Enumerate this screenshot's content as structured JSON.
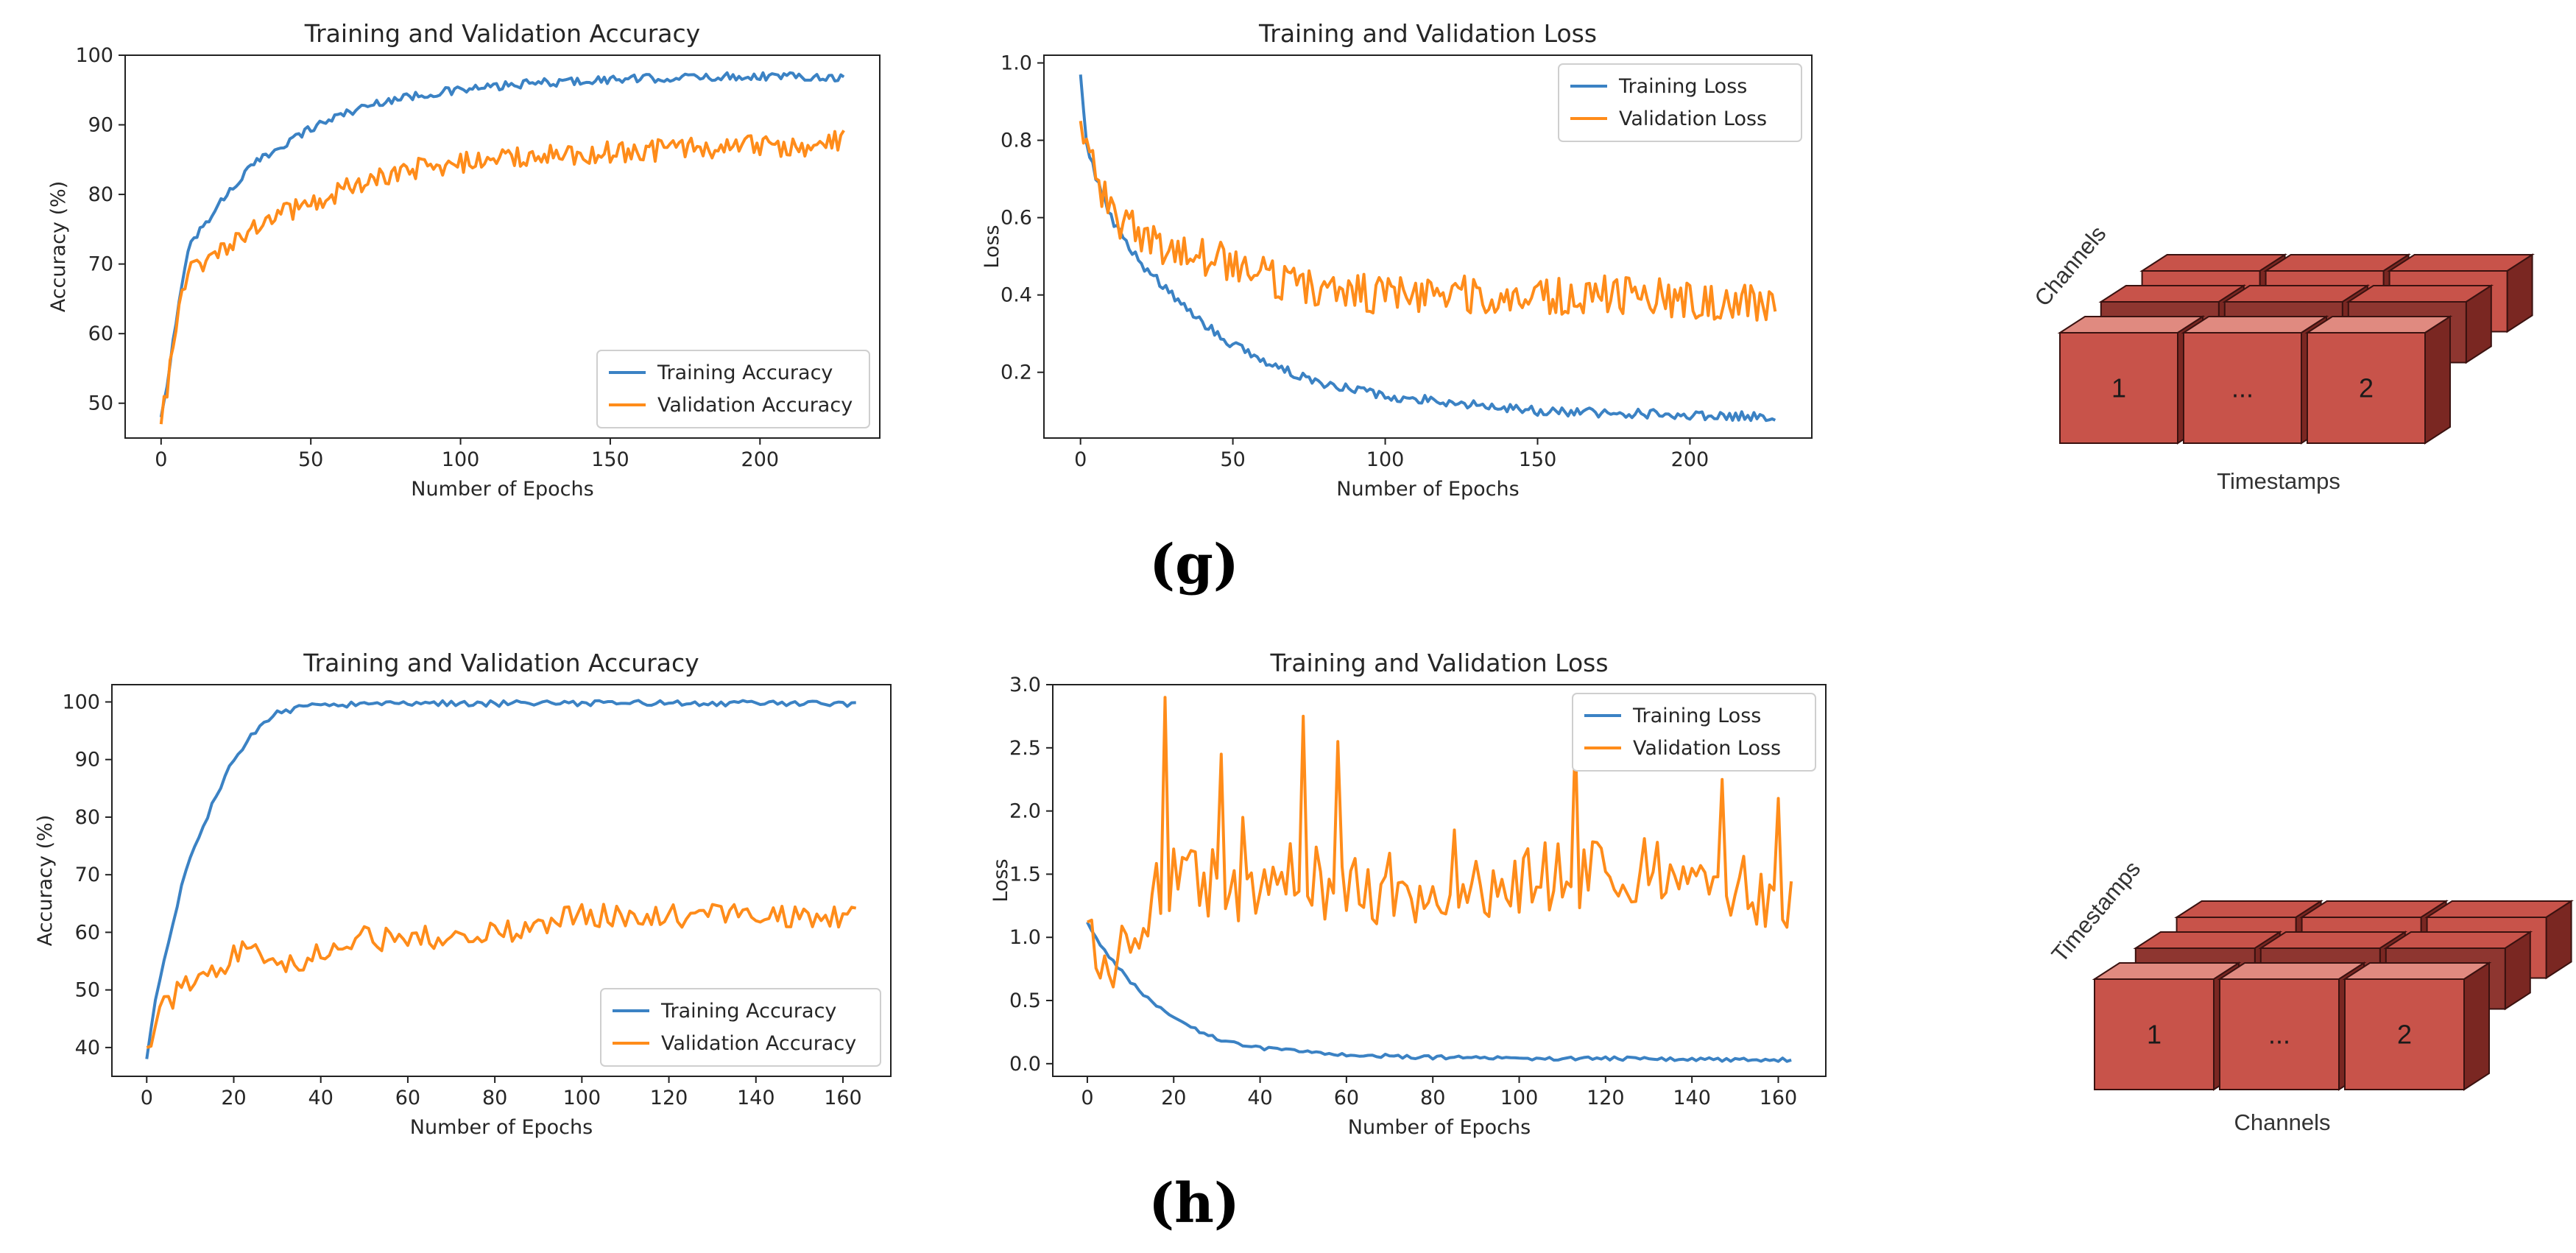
{
  "colors": {
    "training": "#3b82c4",
    "validation": "#ff8c1a",
    "cube_front": "#c8534a",
    "cube_top": "#e08a80",
    "cube_side": "#7a2722",
    "cube_back": "#8e3630"
  },
  "panel_labels": [
    "(g)",
    "(h)"
  ],
  "cubes": [
    {
      "depth_axis_label": "Channels",
      "width_axis_label": "Timestamps",
      "cells": [
        "1",
        "...",
        "2"
      ]
    },
    {
      "depth_axis_label": "Timestamps",
      "width_axis_label": "Channels",
      "cells": [
        "1",
        "...",
        "2"
      ]
    }
  ],
  "chart_data": [
    {
      "id": "g-acc",
      "type": "line",
      "title": "Training and Validation Accuracy",
      "xlabel": "Number of Epochs",
      "ylabel": "Accuracy (%)",
      "xlim": [
        -12,
        240
      ],
      "ylim": [
        45,
        100
      ],
      "xticks": [
        0,
        50,
        100,
        150,
        200
      ],
      "yticks": [
        50,
        60,
        70,
        80,
        90,
        100
      ],
      "legend": "lower-right",
      "series": [
        {
          "name": "Training Accuracy",
          "color_key": "training",
          "x": [
            0,
            2,
            5,
            8,
            10,
            15,
            20,
            30,
            40,
            50,
            60,
            75,
            90,
            100,
            125,
            150,
            175,
            200,
            215,
            228
          ],
          "y": [
            48,
            52,
            62,
            70,
            73,
            76,
            79,
            84,
            87,
            89.5,
            91.5,
            93.5,
            94.5,
            95,
            96,
            96.5,
            96.8,
            97,
            97,
            96.8
          ],
          "noise": 0.6
        },
        {
          "name": "Validation Accuracy",
          "color_key": "validation",
          "x": [
            0,
            2,
            5,
            8,
            10,
            15,
            20,
            30,
            40,
            50,
            60,
            75,
            90,
            100,
            125,
            150,
            175,
            200,
            215,
            228
          ],
          "y": [
            47,
            52,
            62,
            67,
            69,
            70,
            72,
            75,
            77,
            79,
            80.5,
            82.5,
            84,
            84.5,
            85.5,
            86,
            86.5,
            87,
            87,
            88
          ],
          "noise": 1.6
        }
      ]
    },
    {
      "id": "g-loss",
      "type": "line",
      "title": "Training and Validation Loss",
      "xlabel": "Number of Epochs",
      "ylabel": "Loss",
      "xlim": [
        -12,
        240
      ],
      "ylim": [
        0.03,
        1.02
      ],
      "xticks": [
        0,
        50,
        100,
        150,
        200
      ],
      "yticks": [
        0.2,
        0.4,
        0.6,
        0.8,
        1.0
      ],
      "legend": "upper-right",
      "series": [
        {
          "name": "Training Loss",
          "color_key": "training",
          "x": [
            0,
            2,
            5,
            10,
            15,
            20,
            30,
            40,
            50,
            60,
            75,
            100,
            125,
            150,
            175,
            200,
            228
          ],
          "y": [
            0.97,
            0.8,
            0.7,
            0.6,
            0.54,
            0.48,
            0.4,
            0.33,
            0.27,
            0.23,
            0.18,
            0.14,
            0.12,
            0.1,
            0.095,
            0.09,
            0.085
          ],
          "noise": 0.012
        },
        {
          "name": "Validation Loss",
          "color_key": "validation",
          "x": [
            0,
            2,
            5,
            10,
            15,
            20,
            30,
            40,
            50,
            60,
            75,
            100,
            125,
            150,
            175,
            200,
            228
          ],
          "y": [
            0.85,
            0.78,
            0.7,
            0.62,
            0.58,
            0.55,
            0.52,
            0.5,
            0.48,
            0.45,
            0.42,
            0.4,
            0.4,
            0.4,
            0.4,
            0.39,
            0.37
          ],
          "noise": 0.05
        }
      ]
    },
    {
      "id": "h-acc",
      "type": "line",
      "title": "Training and Validation Accuracy",
      "xlabel": "Number of Epochs",
      "ylabel": "Accuracy (%)",
      "xlim": [
        -8,
        171
      ],
      "ylim": [
        35,
        103
      ],
      "xticks": [
        0,
        20,
        40,
        60,
        80,
        100,
        120,
        140,
        160
      ],
      "yticks": [
        40,
        50,
        60,
        70,
        80,
        90,
        100
      ],
      "legend": "lower-right",
      "series": [
        {
          "name": "Training Accuracy",
          "color_key": "training",
          "x": [
            0,
            2,
            5,
            8,
            10,
            15,
            20,
            25,
            30,
            35,
            40,
            60,
            80,
            100,
            120,
            140,
            163
          ],
          "y": [
            38,
            48,
            58,
            68,
            73,
            82,
            90,
            95,
            98,
            99,
            99.5,
            99.8,
            99.7,
            99.8,
            99.8,
            99.8,
            99.7
          ],
          "noise": 0.5
        },
        {
          "name": "Validation Accuracy",
          "color_key": "validation",
          "x": [
            0,
            2,
            5,
            10,
            15,
            20,
            25,
            30,
            40,
            50,
            60,
            80,
            100,
            120,
            140,
            163
          ],
          "y": [
            40,
            44,
            48,
            51,
            53,
            56,
            57,
            55,
            56,
            59,
            59,
            60,
            63,
            63,
            63,
            63
          ],
          "noise": 2.2
        }
      ]
    },
    {
      "id": "h-loss",
      "type": "line",
      "title": "Training and Validation Loss",
      "xlabel": "Number of Epochs",
      "ylabel": "Loss",
      "xlim": [
        -8,
        171
      ],
      "ylim": [
        -0.1,
        3.0
      ],
      "xticks": [
        0,
        20,
        40,
        60,
        80,
        100,
        120,
        140,
        160
      ],
      "yticks": [
        0.0,
        0.5,
        1.0,
        1.5,
        2.0,
        2.5,
        3.0
      ],
      "legend": "upper-right",
      "series": [
        {
          "name": "Training Loss",
          "color_key": "training",
          "x": [
            0,
            2,
            5,
            10,
            15,
            20,
            25,
            30,
            40,
            60,
            80,
            100,
            120,
            140,
            163
          ],
          "y": [
            1.12,
            1.0,
            0.85,
            0.65,
            0.48,
            0.36,
            0.27,
            0.2,
            0.12,
            0.07,
            0.05,
            0.04,
            0.04,
            0.035,
            0.03
          ],
          "noise": 0.015
        },
        {
          "name": "Validation Loss",
          "color_key": "validation",
          "x": [
            0,
            3,
            6,
            10,
            13,
            16,
            20,
            30,
            50,
            70,
            100,
            130,
            163
          ],
          "y": [
            1.12,
            0.95,
            0.9,
            1.05,
            1.25,
            1.4,
            1.45,
            1.4,
            1.45,
            1.4,
            1.45,
            1.5,
            1.3
          ],
          "noise": 0.3,
          "spikes": [
            [
              18,
              2.9
            ],
            [
              31,
              2.45
            ],
            [
              50,
              2.75
            ],
            [
              58,
              2.55
            ],
            [
              36,
              1.95
            ],
            [
              113,
              2.6
            ],
            [
              147,
              2.25
            ],
            [
              160,
              2.1
            ],
            [
              85,
              1.85
            ]
          ]
        }
      ]
    }
  ]
}
